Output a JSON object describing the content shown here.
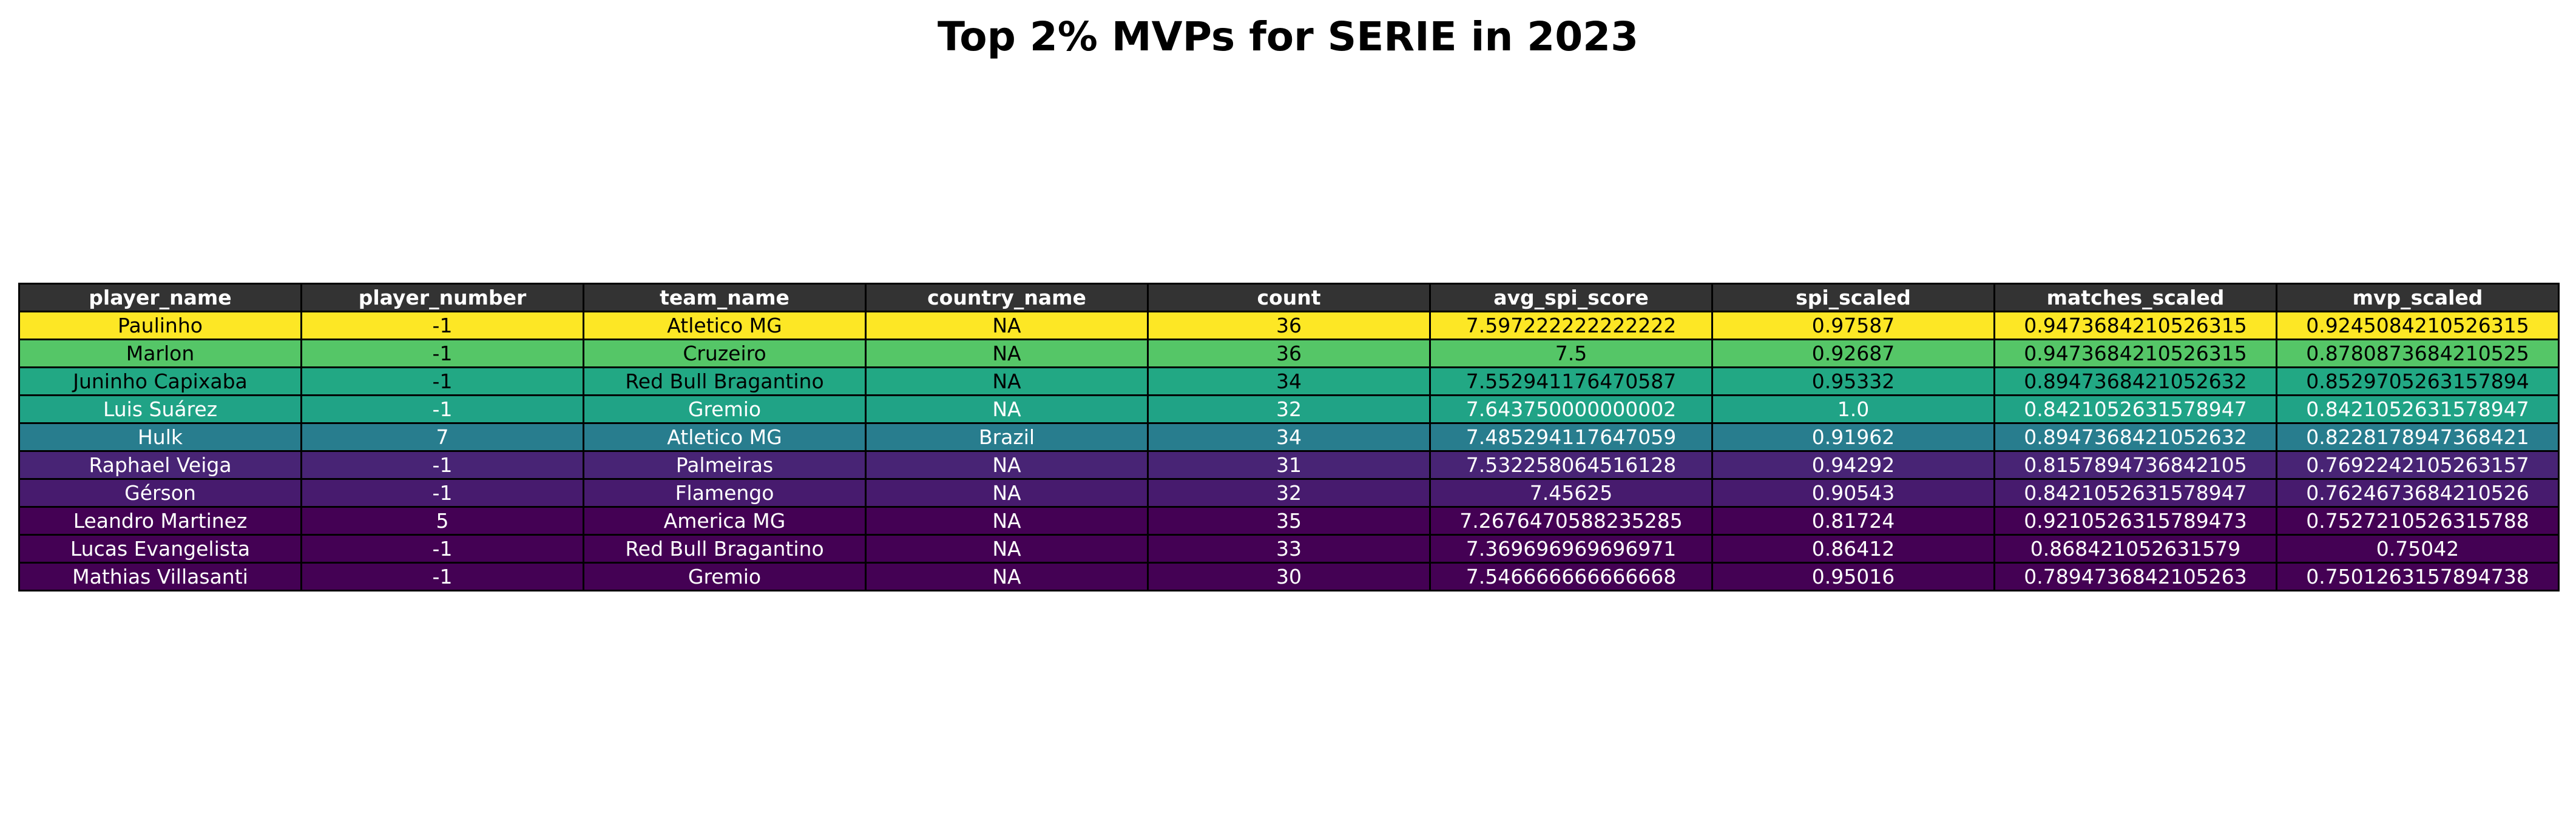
{
  "chart_data": {
    "type": "table",
    "title": "Top 2% MVPs for SERIE in 2023",
    "columns": [
      "player_name",
      "player_number",
      "team_name",
      "country_name",
      "count",
      "avg_spi_score",
      "spi_scaled",
      "matches_scaled",
      "mvp_scaled"
    ],
    "rows": [
      {
        "values": [
          "Paulinho",
          "-1",
          "Atletico MG",
          "NA",
          "36",
          "7.597222222222222",
          "0.97587",
          "0.9473684210526315",
          "0.9245084210526315"
        ],
        "color": "#fde725",
        "text_color": "#000000"
      },
      {
        "values": [
          "Marlon",
          "-1",
          "Cruzeiro",
          "NA",
          "36",
          "7.5",
          "0.92687",
          "0.9473684210526315",
          "0.8780873684210525"
        ],
        "color": "#55c667",
        "text_color": "#000000"
      },
      {
        "values": [
          "Juninho Capixaba",
          "-1",
          "Red Bull Bragantino",
          "NA",
          "34",
          "7.552941176470587",
          "0.95332",
          "0.8947368421052632",
          "0.8529705263157894"
        ],
        "color": "#22a884",
        "text_color": "#000000"
      },
      {
        "values": [
          "Luis Suárez",
          "-1",
          "Gremio",
          "NA",
          "32",
          "7.643750000000002",
          "1.0",
          "0.8421052631578947",
          "0.8421052631578947"
        ],
        "color": "#20a386",
        "text_color": "#ffffff"
      },
      {
        "values": [
          "Hulk",
          "7",
          "Atletico MG",
          "Brazil",
          "34",
          "7.485294117647059",
          "0.91962",
          "0.8947368421052632",
          "0.8228178947368421"
        ],
        "color": "#287d8e",
        "text_color": "#ffffff"
      },
      {
        "values": [
          "Raphael Veiga",
          "-1",
          "Palmeiras",
          "NA",
          "31",
          "7.532258064516128",
          "0.94292",
          "0.8157894736842105",
          "0.7692242105263157"
        ],
        "color": "#482475",
        "text_color": "#ffffff"
      },
      {
        "values": [
          "Gérson",
          "-1",
          "Flamengo",
          "NA",
          "32",
          "7.45625",
          "0.90543",
          "0.8421052631578947",
          "0.7624673684210526"
        ],
        "color": "#471b6e",
        "text_color": "#ffffff"
      },
      {
        "values": [
          "Leandro Martinez",
          "5",
          "America MG",
          "NA",
          "35",
          "7.2676470588235285",
          "0.81724",
          "0.9210526315789473",
          "0.7527210526315788"
        ],
        "color": "#440154",
        "text_color": "#ffffff"
      },
      {
        "values": [
          "Lucas Evangelista",
          "-1",
          "Red Bull Bragantino",
          "NA",
          "33",
          "7.369696969696971",
          "0.86412",
          "0.868421052631579",
          "0.75042"
        ],
        "color": "#440154",
        "text_color": "#ffffff"
      },
      {
        "values": [
          "Mathias Villasanti",
          "-1",
          "Gremio",
          "NA",
          "30",
          "7.546666666666668",
          "0.95016",
          "0.7894736842105263",
          "0.7501263157894738"
        ],
        "color": "#440154",
        "text_color": "#ffffff"
      }
    ]
  }
}
